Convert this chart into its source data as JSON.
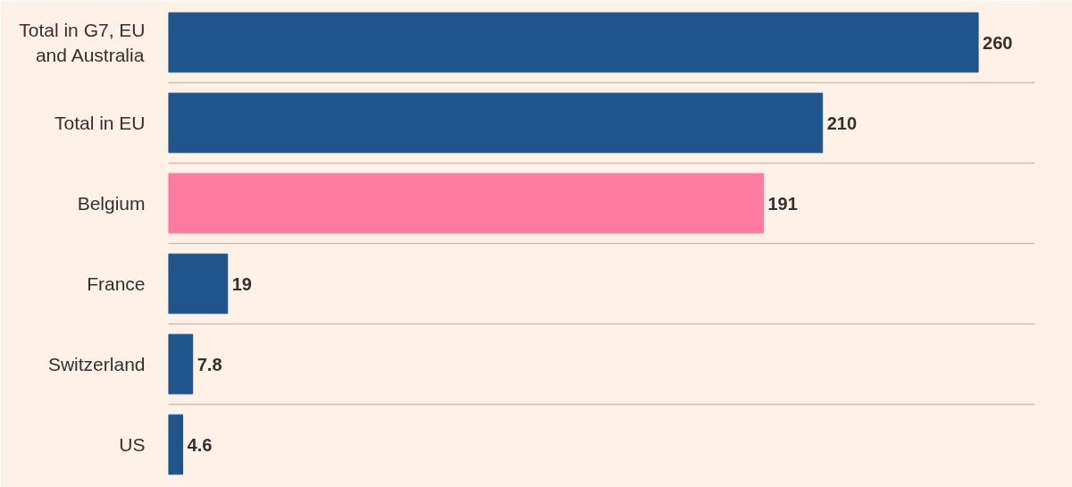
{
  "chart_data": {
    "type": "bar",
    "orientation": "horizontal",
    "categories": [
      "Total in G7, EU and Australia",
      "Total in EU",
      "Belgium",
      "France",
      "Switzerland",
      "US"
    ],
    "values": [
      260,
      210,
      191,
      19,
      7.8,
      4.6
    ],
    "colors": [
      "#1e558c",
      "#1e558c",
      "#ff7aa0",
      "#1e558c",
      "#1e558c",
      "#1e558c"
    ],
    "data_labels": true,
    "grid": "y"
  }
}
